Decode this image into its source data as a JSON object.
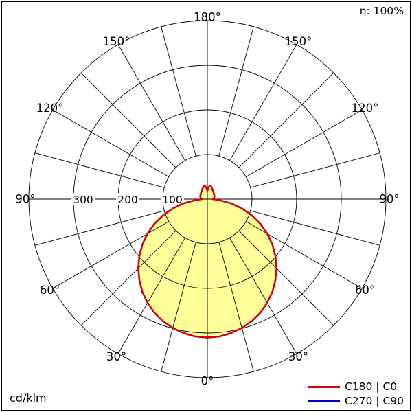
{
  "header": {
    "efficiency": "η: 100%"
  },
  "footer": {
    "unit": "cd/klm"
  },
  "legend": [
    {
      "label": "C180 | C0",
      "color": "#dd0000"
    },
    {
      "label": "C270 | C90",
      "color": "#0000cc"
    }
  ],
  "chart_data": {
    "type": "polar",
    "description": "Luminous intensity distribution curve (polar photometric diagram)",
    "unit": "cd/klm",
    "efficiency": "100%",
    "grid": true,
    "grid_color": "#000000",
    "fill_color": "#ffff99",
    "angle_step_deg": 15,
    "angle_labels": [
      "0°",
      "30°",
      "60°",
      "90°",
      "120°",
      "150°",
      "180°"
    ],
    "ring_values": [
      100,
      200,
      300,
      400
    ],
    "ring_labels": [
      "100",
      "200",
      "300"
    ],
    "r_max": 400,
    "series": [
      {
        "name": "C180 | C0",
        "color": "#dd0000",
        "gamma_deg": [
          0,
          5,
          10,
          15,
          20,
          25,
          30,
          35,
          40,
          45,
          50,
          55,
          60,
          65,
          70,
          75,
          80,
          85,
          90,
          95,
          100,
          105,
          110,
          115,
          120,
          125,
          130,
          135,
          140,
          145,
          150,
          155,
          160,
          165,
          170,
          175,
          180
        ],
        "values": [
          310,
          309,
          305,
          299,
          291,
          281,
          268,
          254,
          237,
          219,
          199,
          178,
          155,
          131,
          106,
          80,
          54,
          28,
          12,
          13,
          15,
          16,
          17,
          17,
          18,
          18,
          19,
          20,
          21,
          22,
          24,
          26,
          28,
          30,
          30,
          26,
          19
        ]
      },
      {
        "name": "C270 | C90",
        "color": "#0000cc",
        "gamma_deg": [
          0,
          5,
          10,
          15,
          20,
          25,
          30,
          35,
          40,
          45,
          50,
          55,
          60,
          65,
          70,
          75,
          80,
          85,
          90,
          95,
          100,
          105,
          110,
          115,
          120,
          125,
          130,
          135,
          140,
          145,
          150,
          155,
          160,
          165,
          170,
          175,
          180
        ],
        "values": [
          310,
          309,
          305,
          299,
          291,
          281,
          268,
          254,
          237,
          219,
          199,
          178,
          155,
          131,
          106,
          80,
          54,
          28,
          12,
          13,
          15,
          16,
          17,
          17,
          18,
          18,
          19,
          20,
          21,
          22,
          24,
          26,
          28,
          30,
          30,
          26,
          19
        ]
      }
    ]
  }
}
